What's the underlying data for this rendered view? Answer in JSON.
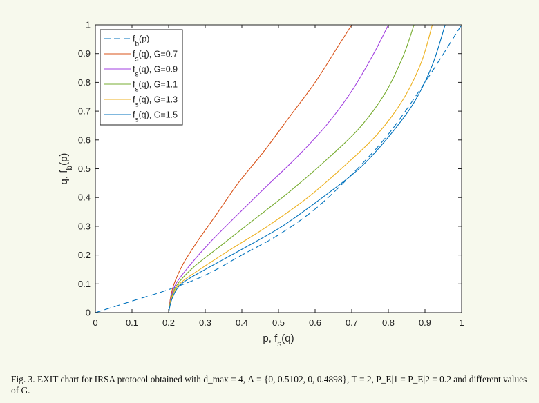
{
  "chart_data": {
    "type": "line",
    "xlabel": "p, f_s(q)",
    "ylabel": "q, f_b(p)",
    "xlim": [
      0,
      1
    ],
    "ylim": [
      0,
      1
    ],
    "xticks": [
      "0",
      "0.1",
      "0.2",
      "0.3",
      "0.4",
      "0.5",
      "0.6",
      "0.7",
      "0.8",
      "0.9",
      "1"
    ],
    "yticks": [
      "0",
      "0.1",
      "0.2",
      "0.3",
      "0.4",
      "0.5",
      "0.6",
      "0.7",
      "0.8",
      "0.9",
      "1"
    ],
    "grid": false,
    "legend_position": "top-left",
    "series": [
      {
        "name": "f_b(p)",
        "color": "#0072bd",
        "dash": "dashed",
        "x": [
          0,
          0.1,
          0.2,
          0.3,
          0.4,
          0.5,
          0.6,
          0.7,
          0.8,
          0.9,
          1.0
        ],
        "y": [
          0,
          0.04,
          0.08,
          0.13,
          0.2,
          0.27,
          0.36,
          0.48,
          0.62,
          0.8,
          1.0
        ]
      },
      {
        "name": "f_s(q), G=0.7",
        "color": "#d95319",
        "dash": "solid",
        "x": [
          0.2,
          0.205,
          0.215,
          0.24,
          0.28,
          0.33,
          0.39,
          0.46,
          0.53,
          0.6,
          0.66,
          0.7
        ],
        "y": [
          0,
          0.05,
          0.1,
          0.17,
          0.25,
          0.34,
          0.45,
          0.56,
          0.68,
          0.8,
          0.92,
          1.0
        ]
      },
      {
        "name": "f_s(q), G=0.9",
        "color": "#a23fe0",
        "dash": "solid",
        "x": [
          0.2,
          0.206,
          0.22,
          0.255,
          0.31,
          0.38,
          0.46,
          0.55,
          0.63,
          0.7,
          0.76,
          0.8
        ],
        "y": [
          0,
          0.05,
          0.1,
          0.16,
          0.24,
          0.33,
          0.43,
          0.54,
          0.65,
          0.77,
          0.9,
          1.0
        ]
      },
      {
        "name": "f_s(q), G=1.1",
        "color": "#77ac30",
        "dash": "solid",
        "x": [
          0.2,
          0.207,
          0.225,
          0.27,
          0.34,
          0.43,
          0.53,
          0.63,
          0.72,
          0.79,
          0.84,
          0.87
        ],
        "y": [
          0,
          0.05,
          0.1,
          0.16,
          0.23,
          0.32,
          0.42,
          0.53,
          0.64,
          0.76,
          0.89,
          1.0
        ]
      },
      {
        "name": "f_s(q), G=1.3",
        "color": "#edb120",
        "dash": "solid",
        "x": [
          0.2,
          0.208,
          0.23,
          0.285,
          0.37,
          0.47,
          0.58,
          0.68,
          0.77,
          0.84,
          0.89,
          0.92
        ],
        "y": [
          0,
          0.05,
          0.1,
          0.15,
          0.22,
          0.3,
          0.4,
          0.51,
          0.62,
          0.74,
          0.87,
          1.0
        ]
      },
      {
        "name": "f_s(q), G=1.5",
        "color": "#0072bd",
        "dash": "solid",
        "x": [
          0.2,
          0.21,
          0.235,
          0.3,
          0.4,
          0.51,
          0.62,
          0.72,
          0.8,
          0.87,
          0.92,
          0.955
        ],
        "y": [
          0,
          0.05,
          0.1,
          0.15,
          0.22,
          0.3,
          0.4,
          0.5,
          0.61,
          0.73,
          0.86,
          1.0
        ]
      }
    ]
  },
  "caption": {
    "text": "Fig. 3.   EXIT chart for IRSA protocol obtained with d_max = 4, Λ = {0, 0.5102, 0, 0.4898}, T = 2, P_E|1 = P_E|2 = 0.2 and different values of G."
  }
}
